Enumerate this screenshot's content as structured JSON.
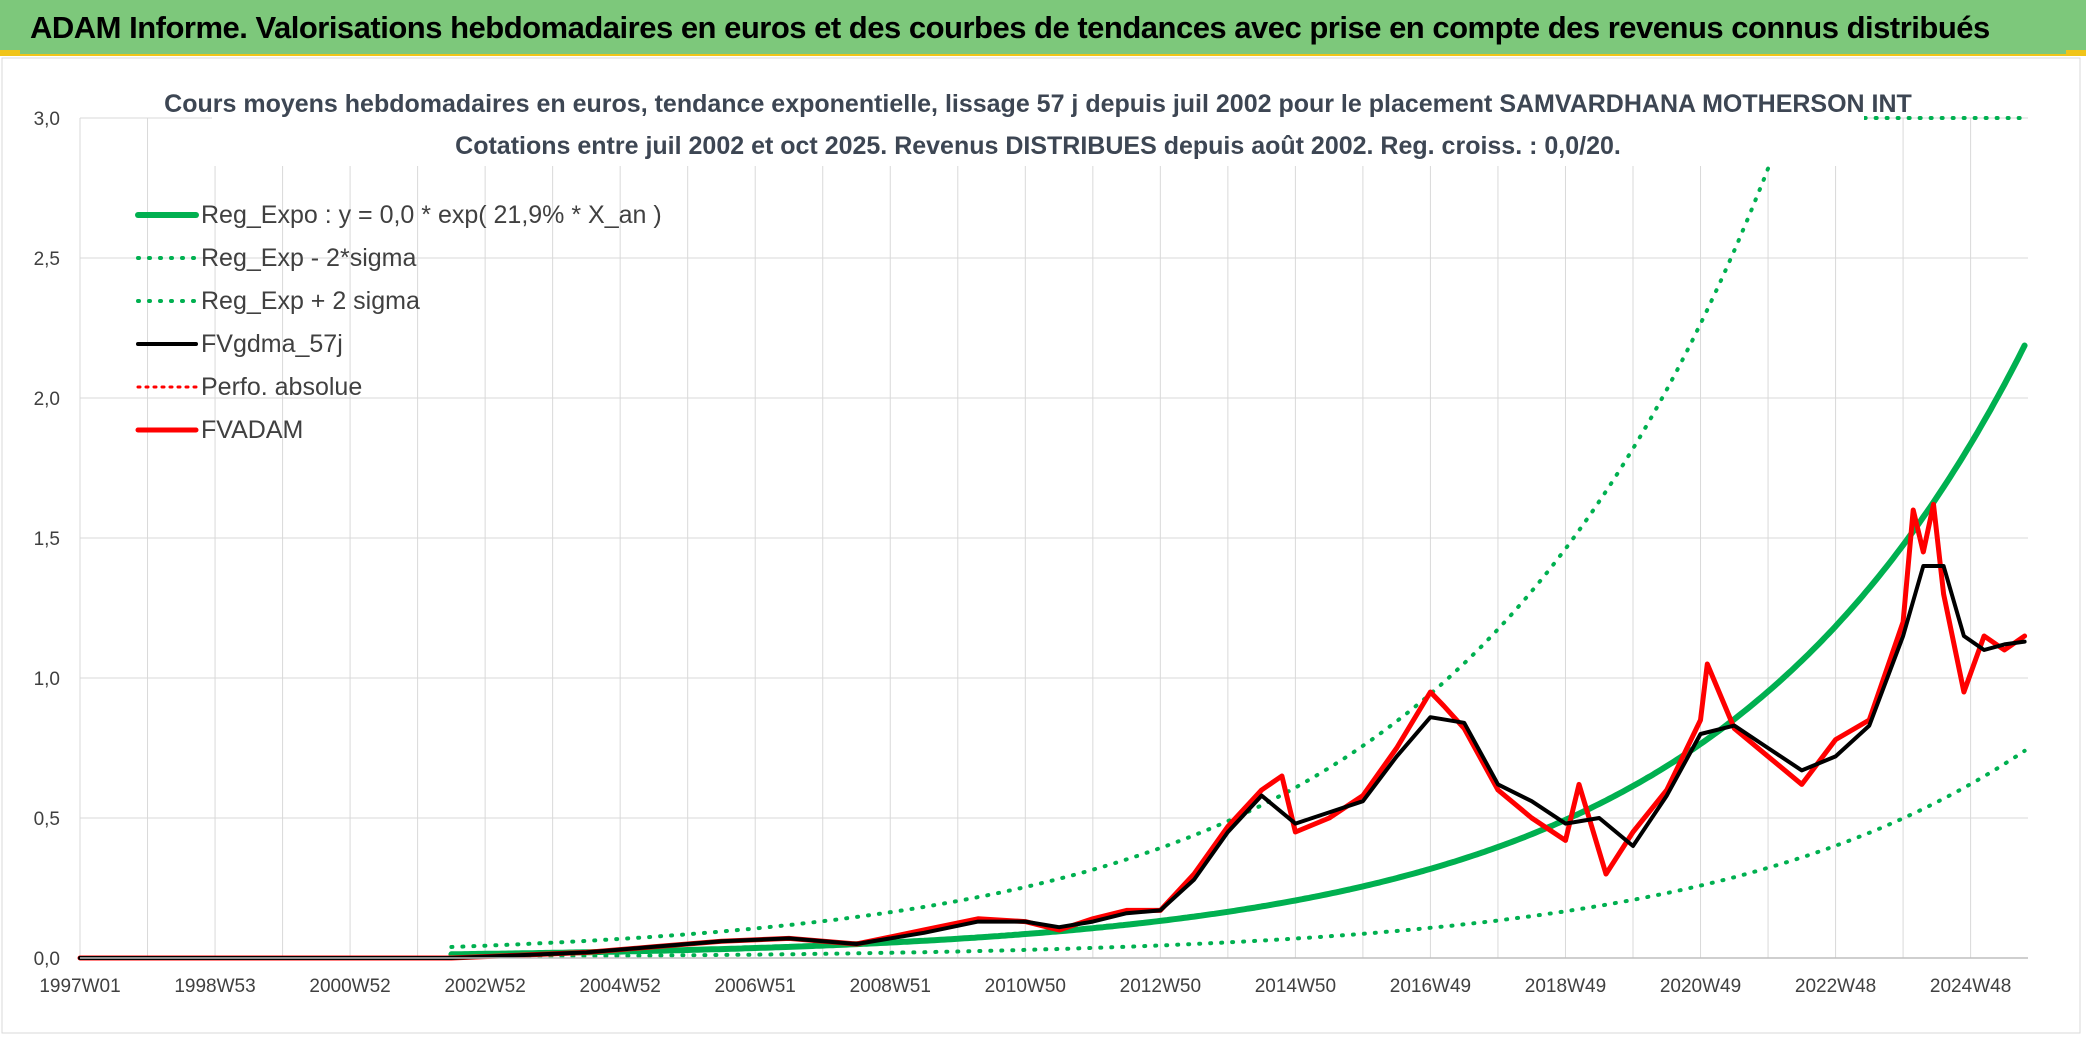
{
  "header": {
    "title": "ADAM Informe. Valorisations hebdomadaires en euros et des courbes de tendances avec prise en compte des revenus connus distribués"
  },
  "colors": {
    "header_bg": "#7dc87b",
    "accent": "#f0c419",
    "green": "#00b050",
    "black": "#000000",
    "red": "#ff0000"
  },
  "chart_data": {
    "type": "line",
    "title_line1": "Cours moyens hebdomadaires en euros, tendance exponentielle, lissage 57 j depuis juil 2002 pour le placement SAMVARDHANA MOTHERSON INT",
    "title_line2": "Cotations entre juil 2002  et oct 2025. Revenus DISTRIBUES depuis août 2002. Reg. croiss. : 0,0/20.",
    "xlabel": "",
    "ylabel": "",
    "xlim": [
      1997.0,
      2025.85
    ],
    "ylim": [
      0,
      3.0
    ],
    "y_ticks": [
      0,
      0.5,
      1.0,
      1.5,
      2.0,
      2.5,
      3.0
    ],
    "y_tick_labels": [
      "0,0",
      "0,5",
      "1,0",
      "1,5",
      "2,0",
      "2,5",
      "3,0"
    ],
    "x_ticks": [
      1997.0,
      1999.0,
      2001.0,
      2003.0,
      2005.0,
      2007.0,
      2009.0,
      2011.0,
      2013.0,
      2015.0,
      2017.0,
      2019.0,
      2021.0,
      2023.0,
      2025.0
    ],
    "x_tick_labels": [
      "1997W01",
      "1998W53",
      "2000W52",
      "2002W52",
      "2004W52",
      "2006W51",
      "2008W51",
      "2010W50",
      "2012W50",
      "2014W50",
      "2016W49",
      "2018W49",
      "2020W49",
      "2022W48",
      "2024W48"
    ],
    "legend": [
      {
        "label": "Reg_Expo : y = 0,0 * exp( 21,9% *  X_an )",
        "color": "#00b050",
        "style": "solid",
        "width": 6
      },
      {
        "label": "Reg_Exp - 2*sigma",
        "color": "#00b050",
        "style": "dotted",
        "width": 4
      },
      {
        "label": "Reg_Exp + 2 sigma",
        "color": "#00b050",
        "style": "dotted",
        "width": 4
      },
      {
        "label": "FVgdma_57j",
        "color": "#000000",
        "style": "solid",
        "width": 4
      },
      {
        "label": "Perfo. absolue",
        "color": "#ff0000",
        "style": "dotted",
        "width": 3
      },
      {
        "label": "FVADAM",
        "color": "#ff0000",
        "style": "solid",
        "width": 5
      }
    ],
    "series": [
      {
        "name": "Reg_Expo",
        "kind": "exp",
        "x_start": 2002.5,
        "x_end": 2025.8,
        "a": 0.0133,
        "x0": 2002.5,
        "rate": 0.219
      },
      {
        "name": "Reg_Exp - 2*sigma",
        "kind": "exp",
        "x_start": 2002.5,
        "x_end": 2025.8,
        "a": 0.0045,
        "x0": 2002.5,
        "rate": 0.219
      },
      {
        "name": "Reg_Exp + 2 sigma",
        "kind": "exp",
        "x_start": 2002.5,
        "x_end": 2025.8,
        "a": 0.0394,
        "x0": 2002.5,
        "rate": 0.219,
        "ceiling": 3.0
      },
      {
        "name": "FVgdma_57j",
        "x": [
          1997.0,
          2002.5,
          2003.5,
          2004.5,
          2005.5,
          2006.5,
          2007.5,
          2008.5,
          2009.5,
          2010.3,
          2011.0,
          2011.5,
          2012.0,
          2012.5,
          2013.0,
          2013.5,
          2014.0,
          2014.5,
          2015.0,
          2015.5,
          2016.0,
          2016.5,
          2017.0,
          2017.5,
          2018.0,
          2018.5,
          2019.0,
          2019.5,
          2020.0,
          2020.5,
          2021.0,
          2021.5,
          2022.0,
          2022.5,
          2023.0,
          2023.5,
          2024.0,
          2024.3,
          2024.6,
          2024.9,
          2025.2,
          2025.5,
          2025.8
        ],
        "values": [
          0,
          0.0,
          0.01,
          0.02,
          0.04,
          0.06,
          0.07,
          0.05,
          0.09,
          0.13,
          0.13,
          0.11,
          0.13,
          0.16,
          0.17,
          0.28,
          0.45,
          0.58,
          0.48,
          0.52,
          0.56,
          0.72,
          0.86,
          0.84,
          0.62,
          0.56,
          0.48,
          0.5,
          0.4,
          0.58,
          0.8,
          0.83,
          0.75,
          0.67,
          0.72,
          0.83,
          1.15,
          1.4,
          1.4,
          1.15,
          1.1,
          1.12,
          1.13
        ]
      },
      {
        "name": "FVADAM",
        "x": [
          1997.0,
          2002.5,
          2003.5,
          2004.5,
          2005.5,
          2006.5,
          2007.5,
          2008.5,
          2009.5,
          2010.3,
          2011.0,
          2011.5,
          2012.0,
          2012.5,
          2013.0,
          2013.5,
          2014.0,
          2014.5,
          2014.8,
          2015.0,
          2015.5,
          2016.0,
          2016.5,
          2017.0,
          2017.2,
          2017.5,
          2018.0,
          2018.5,
          2019.0,
          2019.2,
          2019.6,
          2020.0,
          2020.5,
          2021.0,
          2021.1,
          2021.5,
          2022.0,
          2022.5,
          2023.0,
          2023.5,
          2024.0,
          2024.15,
          2024.3,
          2024.45,
          2024.6,
          2024.9,
          2025.2,
          2025.5,
          2025.8
        ],
        "values": [
          0,
          0.0,
          0.01,
          0.02,
          0.04,
          0.06,
          0.07,
          0.05,
          0.1,
          0.14,
          0.13,
          0.1,
          0.14,
          0.17,
          0.17,
          0.3,
          0.47,
          0.6,
          0.65,
          0.45,
          0.5,
          0.58,
          0.75,
          0.95,
          0.9,
          0.82,
          0.6,
          0.5,
          0.42,
          0.62,
          0.3,
          0.45,
          0.6,
          0.85,
          1.05,
          0.82,
          0.72,
          0.62,
          0.78,
          0.85,
          1.2,
          1.6,
          1.45,
          1.62,
          1.3,
          0.95,
          1.15,
          1.1,
          1.15
        ]
      },
      {
        "name": "Perfo. absolue",
        "x": [
          1997.0,
          2002.5,
          2003.5,
          2004.5,
          2005.5,
          2006.5,
          2007.5,
          2008.5,
          2009.5,
          2010.3,
          2011.0,
          2011.5,
          2012.0,
          2012.5,
          2013.0,
          2013.5,
          2014.0,
          2014.5,
          2014.8,
          2015.0,
          2015.5,
          2016.0,
          2016.5,
          2017.0,
          2017.2,
          2017.5,
          2018.0,
          2018.5,
          2019.0,
          2019.2,
          2019.6,
          2020.0,
          2020.5,
          2021.0,
          2021.1,
          2021.5,
          2022.0,
          2022.5,
          2023.0,
          2023.5,
          2024.0,
          2024.15,
          2024.3,
          2024.45,
          2024.6,
          2024.9,
          2025.2,
          2025.5,
          2025.8
        ],
        "values": [
          0,
          0.0,
          0.01,
          0.02,
          0.04,
          0.06,
          0.07,
          0.05,
          0.1,
          0.14,
          0.13,
          0.1,
          0.14,
          0.17,
          0.17,
          0.3,
          0.47,
          0.6,
          0.65,
          0.45,
          0.5,
          0.58,
          0.75,
          0.95,
          0.9,
          0.82,
          0.6,
          0.5,
          0.42,
          0.62,
          0.3,
          0.45,
          0.6,
          0.85,
          1.05,
          0.82,
          0.72,
          0.62,
          0.78,
          0.85,
          1.2,
          1.6,
          1.45,
          1.62,
          1.3,
          0.95,
          1.15,
          1.1,
          1.15
        ]
      }
    ]
  }
}
